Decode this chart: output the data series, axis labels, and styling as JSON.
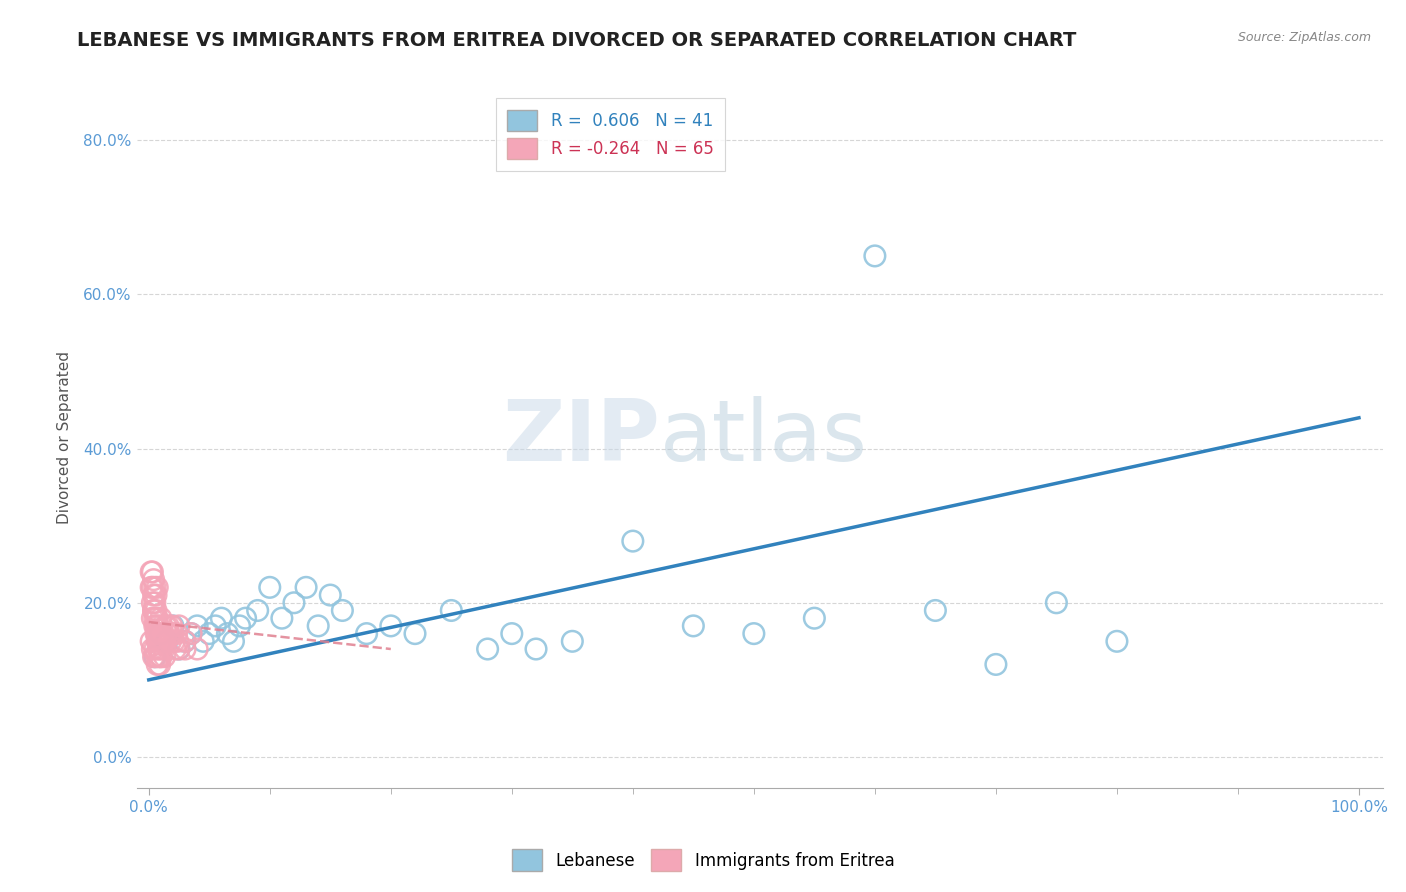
{
  "title": "LEBANESE VS IMMIGRANTS FROM ERITREA DIVORCED OR SEPARATED CORRELATION CHART",
  "source": "Source: ZipAtlas.com",
  "ylabel": "Divorced or Separated",
  "legend_label1": "Lebanese",
  "legend_label2": "Immigrants from Eritrea",
  "R1": 0.606,
  "N1": 41,
  "R2": -0.264,
  "N2": 65,
  "xlim": [
    -0.01,
    1.02
  ],
  "ylim": [
    -0.04,
    0.87
  ],
  "yticks": [
    0.0,
    0.2,
    0.4,
    0.6,
    0.8
  ],
  "ytick_labels": [
    "0.0%",
    "20.0%",
    "40.0%",
    "60.0%",
    "80.0%"
  ],
  "xtick_labels_pos": [
    0.0,
    1.0
  ],
  "xtick_labels": [
    "0.0%",
    "100.0%"
  ],
  "color_blue": "#92c5de",
  "color_pink": "#f4a6b8",
  "line_color_blue": "#3182bd",
  "line_color_pink": "#e08090",
  "background_color": "#ffffff",
  "watermark_text": "ZIPatlas",
  "title_fontsize": 14,
  "label_fontsize": 11,
  "tick_fontsize": 11,
  "blue_x": [
    0.005,
    0.01,
    0.015,
    0.02,
    0.025,
    0.03,
    0.035,
    0.04,
    0.045,
    0.05,
    0.055,
    0.06,
    0.065,
    0.07,
    0.075,
    0.08,
    0.09,
    0.1,
    0.11,
    0.12,
    0.13,
    0.14,
    0.15,
    0.16,
    0.18,
    0.2,
    0.22,
    0.25,
    0.28,
    0.3,
    0.32,
    0.35,
    0.4,
    0.45,
    0.5,
    0.55,
    0.6,
    0.65,
    0.7,
    0.75,
    0.8
  ],
  "blue_y": [
    0.13,
    0.16,
    0.15,
    0.17,
    0.14,
    0.15,
    0.16,
    0.17,
    0.15,
    0.16,
    0.17,
    0.18,
    0.16,
    0.15,
    0.17,
    0.18,
    0.19,
    0.22,
    0.18,
    0.2,
    0.22,
    0.17,
    0.21,
    0.19,
    0.16,
    0.17,
    0.16,
    0.19,
    0.14,
    0.16,
    0.14,
    0.15,
    0.28,
    0.17,
    0.16,
    0.18,
    0.65,
    0.19,
    0.12,
    0.2,
    0.15
  ],
  "pink_x": [
    0.002,
    0.003,
    0.004,
    0.005,
    0.006,
    0.007,
    0.008,
    0.009,
    0.01,
    0.011,
    0.012,
    0.013,
    0.014,
    0.015,
    0.016,
    0.017,
    0.018,
    0.019,
    0.02,
    0.021,
    0.022,
    0.023,
    0.024,
    0.025,
    0.003,
    0.004,
    0.005,
    0.006,
    0.007,
    0.008,
    0.009,
    0.01,
    0.011,
    0.012,
    0.002,
    0.003,
    0.004,
    0.005,
    0.006,
    0.007,
    0.002,
    0.003,
    0.004,
    0.005,
    0.006,
    0.007,
    0.008,
    0.009,
    0.01,
    0.003,
    0.004,
    0.005,
    0.006,
    0.007,
    0.008,
    0.009,
    0.01,
    0.011,
    0.012,
    0.013,
    0.025,
    0.03,
    0.03,
    0.04,
    0.035
  ],
  "pink_y": [
    0.22,
    0.22,
    0.21,
    0.2,
    0.19,
    0.18,
    0.17,
    0.16,
    0.18,
    0.17,
    0.16,
    0.15,
    0.17,
    0.16,
    0.17,
    0.16,
    0.15,
    0.17,
    0.16,
    0.15,
    0.14,
    0.16,
    0.15,
    0.14,
    0.18,
    0.19,
    0.17,
    0.16,
    0.15,
    0.14,
    0.16,
    0.15,
    0.16,
    0.15,
    0.24,
    0.24,
    0.23,
    0.22,
    0.21,
    0.22,
    0.15,
    0.14,
    0.13,
    0.14,
    0.13,
    0.12,
    0.13,
    0.12,
    0.13,
    0.2,
    0.19,
    0.18,
    0.17,
    0.16,
    0.15,
    0.14,
    0.13,
    0.15,
    0.14,
    0.13,
    0.17,
    0.15,
    0.14,
    0.14,
    0.16
  ],
  "blue_line_x0": 0.0,
  "blue_line_x1": 1.0,
  "blue_line_y0": 0.1,
  "blue_line_y1": 0.44,
  "pink_line_x0": 0.0,
  "pink_line_x1": 0.2,
  "pink_line_y0": 0.175,
  "pink_line_y1": 0.14
}
